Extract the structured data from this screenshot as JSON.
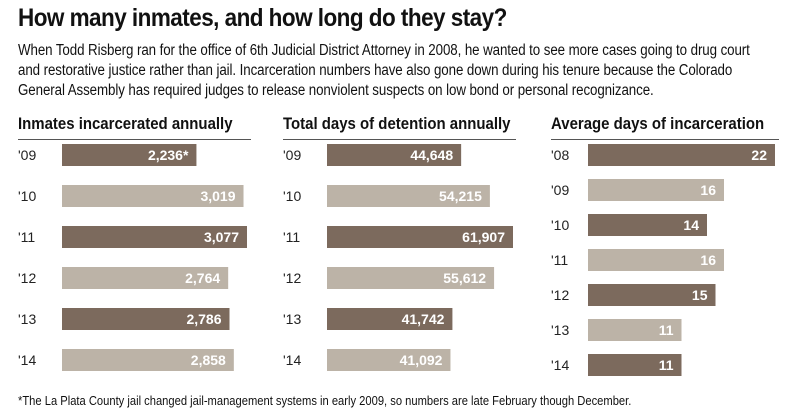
{
  "title": "How many inmates, and how long do they stay?",
  "intro": "When Todd Risberg ran for the office of 6th Judicial District Attorney in 2008, he wanted to see more cases going to drug court and restorative justice rather than jail. Incarceration numbers have also gone down during his tenure because the Colorado General Assembly has required judges to release nonviolent suspects on low bond or personal recognizance.",
  "footnote": "*The La Plata County jail changed jail-management systems in early 2009, so numbers are late February though December.",
  "colors": {
    "dark": "#7c6a5d",
    "light": "#bcb3a7"
  },
  "chart_data": [
    {
      "type": "bar",
      "title": "Inmates incarcerated annually",
      "categories": [
        "'09",
        "'10",
        "'11",
        "'12",
        "'13",
        "'14"
      ],
      "values": [
        2236,
        3019,
        3077,
        2764,
        2786,
        2858
      ],
      "labels": [
        "2,236*",
        "3,019",
        "3,077",
        "2,764",
        "2,786",
        "2,858"
      ],
      "xlim": [
        0,
        3077
      ]
    },
    {
      "type": "bar",
      "title": "Total days of detention annually",
      "categories": [
        "'09",
        "'10",
        "'11",
        "'12",
        "'13",
        "'14"
      ],
      "values": [
        44648,
        54215,
        61907,
        55612,
        41742,
        41092
      ],
      "labels": [
        "44,648",
        "54,215",
        "61,907",
        "55,612",
        "41,742",
        "41,092"
      ],
      "xlim": [
        0,
        61907
      ]
    },
    {
      "type": "bar",
      "title": "Average days of incarceration",
      "categories": [
        "'08",
        "'09",
        "'10",
        "'11",
        "'12",
        "'13",
        "'14"
      ],
      "values": [
        22,
        16,
        14,
        16,
        15,
        11,
        11
      ],
      "labels": [
        "22",
        "16",
        "14",
        "16",
        "15",
        "11",
        "11"
      ],
      "xlim": [
        0,
        22
      ]
    }
  ]
}
